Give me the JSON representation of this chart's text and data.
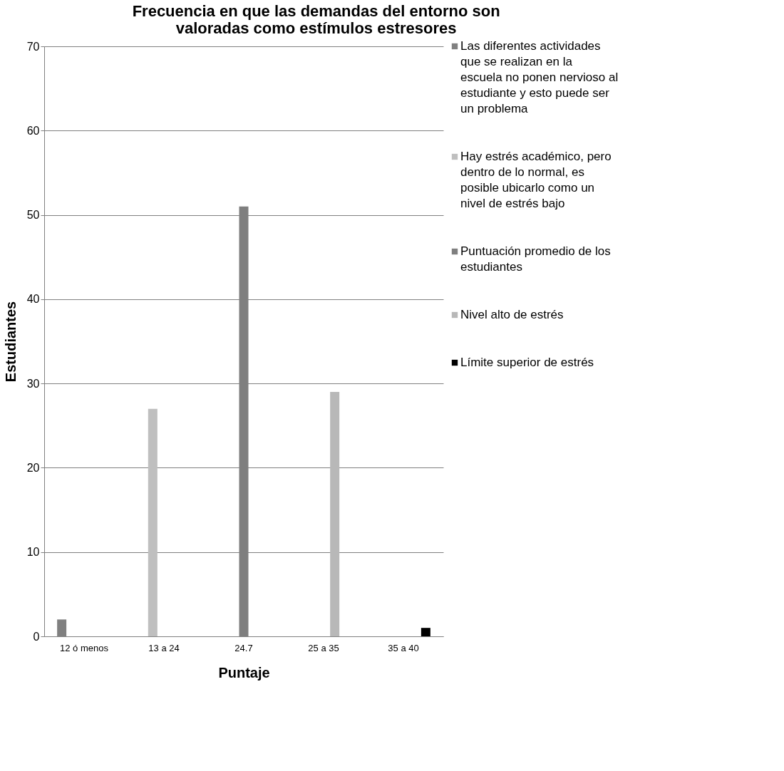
{
  "chart_data": {
    "type": "bar",
    "title": "Frecuencia en que las demandas del entorno son valoradas como estímulos estresores",
    "xlabel": "Puntaje",
    "ylabel": "Estudiantes",
    "categories": [
      "12 ó menos",
      "13 a 24",
      "24.7",
      "25 a 35",
      "35 a 40"
    ],
    "series": [
      {
        "name": "Las diferentes actividades que se realizan en la escuela no ponen nervioso al estudiante y esto puede ser un problema",
        "color": "#808080",
        "values": [
          2,
          null,
          null,
          null,
          null
        ]
      },
      {
        "name": "Hay estrés académico, pero dentro de lo normal, es posible ubicarlo  como un nivel de estrés bajo",
        "color": "#bfbfbf",
        "values": [
          null,
          27,
          null,
          null,
          null
        ]
      },
      {
        "name": "Puntuación promedio de los estudiantes",
        "color": "#7f7f7f",
        "values": [
          null,
          null,
          51,
          null,
          null
        ]
      },
      {
        "name": "Nivel alto de estrés",
        "color": "#b8b8b8",
        "values": [
          null,
          null,
          null,
          29,
          null
        ]
      },
      {
        "name": "Límite superior de estrés",
        "color": "#000000",
        "values": [
          null,
          null,
          null,
          null,
          1
        ]
      }
    ],
    "ylim": [
      0,
      70
    ],
    "yticks": [
      0,
      10,
      20,
      30,
      40,
      50,
      60,
      70
    ],
    "grid": "y",
    "legend": "right"
  }
}
